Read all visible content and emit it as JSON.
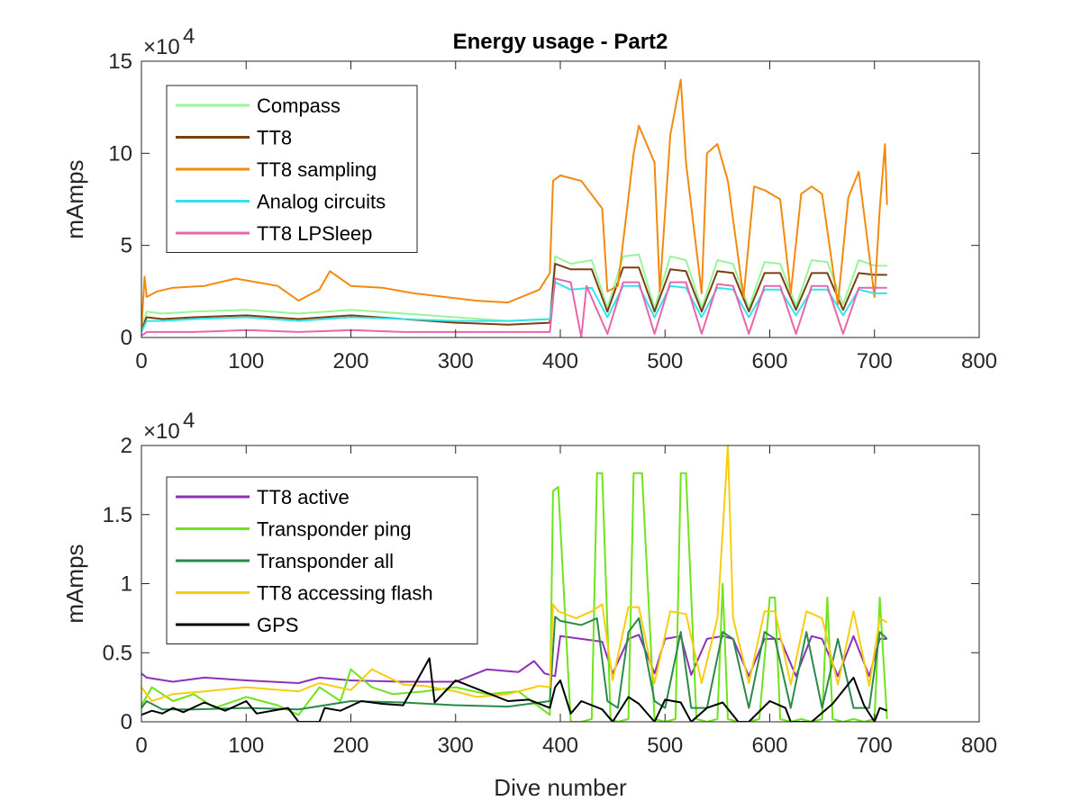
{
  "chart_data": [
    {
      "type": "line",
      "title": "Energy usage - Part2",
      "xlabel": "",
      "ylabel": "mAmps",
      "xlim": [
        0,
        800
      ],
      "ylim": [
        0,
        150000
      ],
      "x_ticks": [
        0,
        100,
        200,
        300,
        400,
        500,
        600,
        700,
        800
      ],
      "y_ticks": [
        0,
        5,
        10,
        15
      ],
      "y_exponent_label": "×10",
      "y_exponent_power": "4",
      "legend_position": "top-left",
      "grid": false,
      "series": [
        {
          "name": "Compass",
          "color": "#98f598",
          "x": [
            0,
            5,
            20,
            50,
            100,
            150,
            200,
            250,
            300,
            350,
            390,
            395,
            410,
            430,
            445,
            460,
            475,
            490,
            505,
            520,
            535,
            550,
            565,
            580,
            595,
            610,
            625,
            640,
            655,
            670,
            685,
            700,
            712
          ],
          "y": [
            5000,
            14000,
            13000,
            14000,
            15000,
            13000,
            15000,
            13000,
            11000,
            9000,
            10000,
            44000,
            40000,
            42000,
            16000,
            44000,
            45000,
            16000,
            44000,
            42000,
            16000,
            42000,
            40000,
            16000,
            41000,
            40000,
            17000,
            42000,
            41000,
            18000,
            42000,
            39000,
            39000
          ]
        },
        {
          "name": "TT8",
          "color": "#7a3f10",
          "x": [
            0,
            5,
            20,
            50,
            100,
            150,
            200,
            250,
            300,
            350,
            390,
            395,
            410,
            430,
            445,
            460,
            475,
            490,
            505,
            520,
            535,
            550,
            565,
            580,
            595,
            610,
            625,
            640,
            655,
            670,
            685,
            700,
            712
          ],
          "y": [
            4000,
            11000,
            10000,
            11000,
            12000,
            10000,
            12000,
            10000,
            8000,
            7000,
            8000,
            40000,
            37000,
            37000,
            14000,
            38000,
            38000,
            14000,
            37000,
            36000,
            14000,
            36000,
            35000,
            14000,
            35000,
            35000,
            15000,
            35000,
            35000,
            15000,
            35000,
            34000,
            34000
          ]
        },
        {
          "name": "TT8 sampling",
          "color": "#f28a0f",
          "x": [
            0,
            3,
            5,
            15,
            30,
            60,
            90,
            110,
            130,
            150,
            170,
            180,
            200,
            230,
            260,
            290,
            320,
            350,
            380,
            390,
            393,
            400,
            420,
            440,
            445,
            455,
            470,
            475,
            490,
            495,
            505,
            515,
            520,
            535,
            540,
            550,
            560,
            575,
            585,
            595,
            610,
            620,
            630,
            640,
            650,
            665,
            675,
            685,
            700,
            705,
            710,
            712
          ],
          "y": [
            5000,
            33000,
            22000,
            25000,
            27000,
            28000,
            32000,
            30000,
            28000,
            20000,
            26000,
            36000,
            28000,
            27000,
            24000,
            22000,
            20000,
            19000,
            26000,
            35000,
            85000,
            88000,
            85000,
            70000,
            25000,
            28000,
            100000,
            115000,
            95000,
            25000,
            110000,
            140000,
            95000,
            24000,
            100000,
            105000,
            85000,
            22000,
            82000,
            80000,
            75000,
            24000,
            78000,
            82000,
            78000,
            18000,
            76000,
            90000,
            22000,
            70000,
            105000,
            72000
          ]
        },
        {
          "name": "Analog circuits",
          "color": "#33e3eb",
          "x": [
            0,
            5,
            20,
            50,
            100,
            150,
            200,
            250,
            300,
            350,
            390,
            395,
            410,
            430,
            445,
            460,
            475,
            490,
            505,
            520,
            535,
            550,
            565,
            580,
            595,
            610,
            625,
            640,
            655,
            670,
            685,
            700,
            712
          ],
          "y": [
            3000,
            9000,
            9000,
            10000,
            11000,
            9000,
            11000,
            10000,
            9000,
            9000,
            10000,
            30000,
            26000,
            27000,
            11000,
            28000,
            28000,
            11000,
            28000,
            27000,
            11000,
            27000,
            26000,
            11000,
            26000,
            26000,
            12000,
            26000,
            26000,
            12000,
            26000,
            24000,
            24000
          ]
        },
        {
          "name": "TT8 LPSleep",
          "color": "#e866ab",
          "x": [
            0,
            5,
            20,
            50,
            100,
            150,
            200,
            250,
            300,
            350,
            390,
            395,
            410,
            420,
            425,
            445,
            460,
            475,
            490,
            505,
            520,
            535,
            550,
            565,
            580,
            595,
            610,
            625,
            640,
            655,
            670,
            685,
            700,
            712
          ],
          "y": [
            1000,
            3000,
            3000,
            3000,
            4000,
            3000,
            4000,
            3000,
            3000,
            3000,
            3000,
            32000,
            30000,
            0,
            28000,
            2000,
            30000,
            30000,
            2000,
            30000,
            30000,
            2000,
            29000,
            28000,
            2000,
            28000,
            28000,
            2000,
            28000,
            28000,
            2000,
            27000,
            27000,
            27000
          ]
        }
      ]
    },
    {
      "type": "line",
      "title": "",
      "xlabel": "Dive number",
      "ylabel": "mAmps",
      "xlim": [
        0,
        800
      ],
      "ylim": [
        0,
        20000
      ],
      "x_ticks": [
        0,
        100,
        200,
        300,
        400,
        500,
        600,
        700,
        800
      ],
      "y_ticks": [
        0,
        0.5,
        1,
        1.5,
        2
      ],
      "y_exponent_label": "×10",
      "y_exponent_power": "4",
      "legend_position": "top-left",
      "grid": false,
      "series": [
        {
          "name": "TT8 active",
          "color": "#8e30b8",
          "x": [
            0,
            5,
            30,
            60,
            100,
            150,
            170,
            200,
            250,
            300,
            330,
            360,
            375,
            385,
            395,
            400,
            420,
            440,
            450,
            465,
            475,
            490,
            500,
            515,
            525,
            540,
            555,
            565,
            580,
            595,
            610,
            625,
            640,
            650,
            665,
            680,
            695,
            705,
            712
          ],
          "y": [
            3500,
            3200,
            2900,
            3200,
            3000,
            2800,
            3200,
            3000,
            2900,
            2900,
            3800,
            3600,
            4400,
            3500,
            3300,
            6200,
            6000,
            5800,
            3500,
            6000,
            6300,
            3500,
            6000,
            6200,
            3400,
            6000,
            6200,
            6000,
            3300,
            6000,
            6000,
            3300,
            6200,
            6000,
            3300,
            6200,
            3300,
            6000,
            6000
          ]
        },
        {
          "name": "Transponder ping",
          "color": "#6fe31c",
          "x": [
            0,
            10,
            30,
            50,
            70,
            100,
            130,
            150,
            170,
            190,
            200,
            220,
            240,
            270,
            300,
            330,
            360,
            390,
            393,
            398,
            410,
            420,
            430,
            435,
            440,
            448,
            455,
            465,
            470,
            478,
            490,
            500,
            510,
            515,
            520,
            530,
            540,
            550,
            555,
            560,
            570,
            580,
            590,
            600,
            605,
            610,
            620,
            630,
            640,
            650,
            655,
            660,
            670,
            680,
            690,
            700,
            705,
            712
          ],
          "y": [
            1200,
            2500,
            1500,
            2000,
            1000,
            1800,
            1200,
            500,
            2500,
            1500,
            3800,
            2500,
            2000,
            2200,
            2500,
            2000,
            2200,
            500,
            16700,
            17000,
            0,
            0,
            200,
            18000,
            18000,
            200,
            0,
            200,
            18000,
            18000,
            200,
            0,
            200,
            18000,
            18000,
            200,
            0,
            200,
            10000,
            200,
            0,
            0,
            200,
            9000,
            9000,
            200,
            0,
            200,
            0,
            200,
            9000,
            200,
            0,
            200,
            0,
            200,
            9000,
            200
          ]
        },
        {
          "name": "Transponder all",
          "color": "#2a8a4a",
          "x": [
            0,
            5,
            20,
            50,
            100,
            150,
            200,
            250,
            300,
            350,
            390,
            395,
            400,
            420,
            435,
            445,
            455,
            465,
            475,
            490,
            500,
            515,
            525,
            540,
            555,
            565,
            580,
            595,
            605,
            620,
            635,
            650,
            665,
            680,
            695,
            705,
            712
          ],
          "y": [
            1000,
            1500,
            900,
            900,
            1000,
            900,
            1500,
            1400,
            1200,
            1100,
            1500,
            7600,
            7300,
            7000,
            7500,
            1500,
            1000,
            6500,
            7500,
            1500,
            1000,
            6500,
            1000,
            1000,
            6500,
            6000,
            1000,
            6500,
            6000,
            1000,
            6500,
            1000,
            6000,
            1000,
            1000,
            6500,
            6000
          ]
        },
        {
          "name": "TT8 accessing flash",
          "color": "#f7cd0f",
          "x": [
            0,
            10,
            30,
            60,
            100,
            150,
            170,
            200,
            220,
            250,
            270,
            300,
            320,
            350,
            380,
            390,
            393,
            398,
            415,
            430,
            440,
            450,
            465,
            475,
            490,
            505,
            520,
            535,
            550,
            560,
            565,
            580,
            595,
            605,
            620,
            635,
            650,
            665,
            680,
            695,
            705,
            712
          ],
          "y": [
            2500,
            1500,
            2000,
            2200,
            2500,
            2200,
            2800,
            2300,
            3800,
            2700,
            2600,
            2200,
            1800,
            2000,
            2600,
            2500,
            8500,
            8000,
            7500,
            8000,
            8500,
            3000,
            8300,
            8300,
            2800,
            8000,
            7800,
            2800,
            7500,
            20000,
            7500,
            2800,
            8000,
            8000,
            2700,
            8000,
            7500,
            2700,
            8000,
            2600,
            7500,
            7200
          ]
        },
        {
          "name": "GPS",
          "color": "#000000",
          "x": [
            0,
            10,
            20,
            30,
            40,
            60,
            80,
            100,
            110,
            140,
            150,
            160,
            170,
            175,
            190,
            210,
            230,
            250,
            275,
            280,
            300,
            320,
            350,
            370,
            390,
            395,
            400,
            410,
            420,
            440,
            450,
            465,
            475,
            490,
            500,
            515,
            525,
            540,
            555,
            570,
            580,
            600,
            615,
            620,
            640,
            660,
            680,
            690,
            700,
            705,
            712
          ],
          "y": [
            500,
            800,
            600,
            1000,
            700,
            1400,
            800,
            1500,
            600,
            1000,
            0,
            0,
            0,
            1000,
            800,
            1500,
            1300,
            1200,
            4600,
            1400,
            3000,
            2400,
            1500,
            1600,
            1000,
            2500,
            3000,
            600,
            1500,
            900,
            0,
            1800,
            1300,
            0,
            1600,
            1400,
            0,
            1000,
            1400,
            0,
            0,
            1500,
            1000,
            0,
            0,
            1300,
            3200,
            1200,
            0,
            1000,
            800
          ]
        }
      ]
    }
  ]
}
